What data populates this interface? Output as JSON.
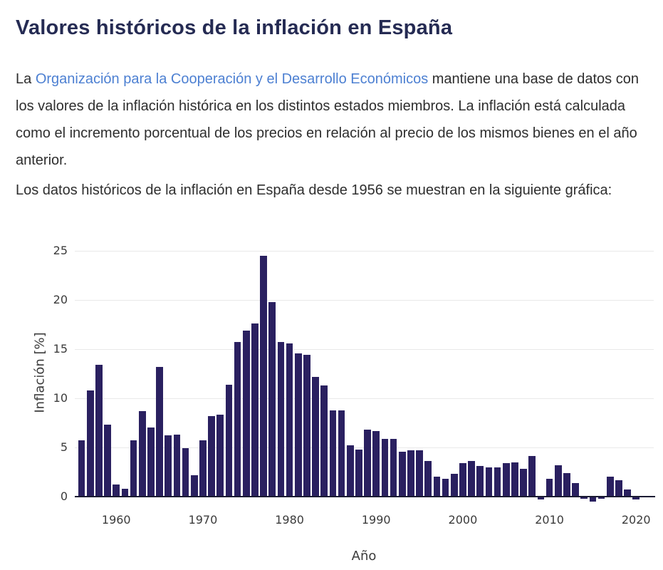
{
  "page": {
    "title": "Valores históricos de la inflación en España",
    "paragraph1": {
      "before_link": "La ",
      "link": "Organización para la Cooperación y el Desarrollo Económicos",
      "after_link": " mantiene una base de datos con los valores de la inflación histórica en los distintos estados miembros. La inflación está calculada como el incremento porcentual de los precios en relación al precio de los mismos bienes en el año anterior."
    },
    "paragraph2": "Los datos históricos de la inflación en España desde 1956 se muestran en la siguiente gráfica:"
  },
  "colors": {
    "title_text": "#252b53",
    "body_text": "#2e2e2e",
    "link": "#4d80d2",
    "bar": "#2a2060",
    "axis_line": "#1b1b33",
    "gridline": "#e9e9e9",
    "tick_label": "#3b3b3b"
  },
  "chart_data": {
    "type": "bar",
    "title": "",
    "xlabel": "Año",
    "ylabel": "Inflación [%]",
    "ylim": [
      -1,
      26
    ],
    "yticks": [
      0,
      5,
      10,
      15,
      20,
      25
    ],
    "xticks": [
      1960,
      1970,
      1980,
      1990,
      2000,
      2010,
      2020
    ],
    "grid": true,
    "legend": "none",
    "years": [
      1956,
      1957,
      1958,
      1959,
      1960,
      1961,
      1962,
      1963,
      1964,
      1965,
      1966,
      1967,
      1968,
      1969,
      1970,
      1971,
      1972,
      1973,
      1974,
      1975,
      1976,
      1977,
      1978,
      1979,
      1980,
      1981,
      1982,
      1983,
      1984,
      1985,
      1986,
      1987,
      1988,
      1989,
      1990,
      1991,
      1992,
      1993,
      1994,
      1995,
      1996,
      1997,
      1998,
      1999,
      2000,
      2001,
      2002,
      2003,
      2004,
      2005,
      2006,
      2007,
      2008,
      2009,
      2010,
      2011,
      2012,
      2013,
      2014,
      2015,
      2016,
      2017,
      2018,
      2019,
      2020
    ],
    "values": [
      5.7,
      10.8,
      13.4,
      7.3,
      1.2,
      0.8,
      5.7,
      8.7,
      7.0,
      13.2,
      6.2,
      6.3,
      4.9,
      2.2,
      5.7,
      8.2,
      8.3,
      11.4,
      15.7,
      16.9,
      17.6,
      24.5,
      19.8,
      15.7,
      15.6,
      14.6,
      14.4,
      12.2,
      11.3,
      8.8,
      8.8,
      5.2,
      4.8,
      6.8,
      6.7,
      5.9,
      5.9,
      4.6,
      4.7,
      4.7,
      3.6,
      2.0,
      1.8,
      2.3,
      3.4,
      3.6,
      3.1,
      3.0,
      3.0,
      3.4,
      3.5,
      2.8,
      4.1,
      -0.3,
      1.8,
      3.2,
      2.4,
      1.4,
      -0.2,
      -0.5,
      -0.2,
      2.0,
      1.7,
      0.7,
      -0.3
    ]
  }
}
